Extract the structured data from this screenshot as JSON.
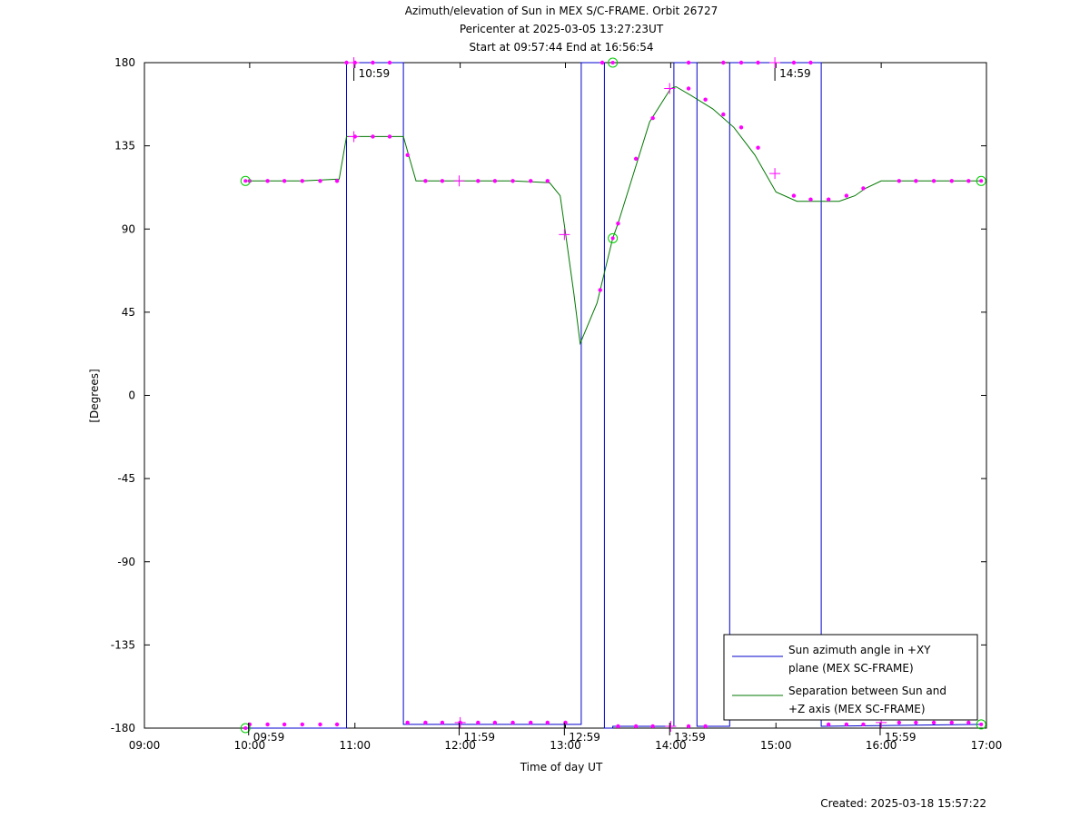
{
  "chart_data": {
    "type": "line",
    "title": [
      "Azimuth/elevation of Sun in MEX S/C-FRAME.  Orbit 26727",
      "Pericenter at 2025-03-05 13:27:23UT",
      "Start at 09:57:44 End at 16:56:54"
    ],
    "xlabel": "Time of day UT",
    "ylabel": "[Degrees]",
    "xlim": [
      9.0,
      17.0
    ],
    "ylim": [
      -180,
      180
    ],
    "x_ticks": [
      9,
      10,
      11,
      12,
      13,
      14,
      15,
      16,
      17
    ],
    "x_tick_labels": [
      "09:00",
      "10:00",
      "11:00",
      "12:00",
      "13:00",
      "14:00",
      "15:00",
      "16:00",
      "17:00"
    ],
    "y_ticks": [
      180,
      135,
      90,
      45,
      0,
      -45,
      -90,
      -135,
      -180
    ],
    "y_tick_labels": [
      "180",
      "135",
      "90",
      "45",
      "0",
      "-45",
      "-90",
      "-135",
      "-180"
    ],
    "grid": false,
    "legend_position": "bottom-right",
    "colors": {
      "azimuth": "#0000cc",
      "separation": "#007700",
      "markers": "#ff00ff",
      "endpoints": "#00cc00"
    },
    "series": [
      {
        "name": "Sun azimuth angle in +XY plane (MEX SC-FRAME)",
        "legend_lines": [
          "Sun azimuth angle in +XY",
          "plane (MEX SC-FRAME)"
        ],
        "color": "#0000cc",
        "x": [
          9.96,
          10.92,
          10.92,
          11.46,
          11.46,
          13.15,
          13.15,
          13.37,
          13.37,
          13.45,
          13.45,
          14.03,
          14.03,
          14.25,
          14.25,
          14.56,
          14.56,
          15.43,
          15.43,
          16.95
        ],
        "y": [
          -180,
          -180,
          180,
          180,
          -178,
          -178,
          180,
          180,
          -180,
          -180,
          -179,
          -179,
          180,
          180,
          -179,
          -179,
          180,
          180,
          -179,
          -178
        ]
      },
      {
        "name": "Separation between Sun and +Z axis (MEX SC-FRAME)",
        "legend_lines": [
          "Separation between Sun and",
          "+Z axis (MEX SC-FRAME)"
        ],
        "color": "#007700",
        "x": [
          9.96,
          10.5,
          10.85,
          10.92,
          11.0,
          11.46,
          11.52,
          11.58,
          12.0,
          12.5,
          12.85,
          12.95,
          13.0,
          13.08,
          13.14,
          13.3,
          13.45,
          13.5,
          13.8,
          14.0,
          14.05,
          14.2,
          14.4,
          14.6,
          14.8,
          15.0,
          15.2,
          15.3,
          15.6,
          15.75,
          15.85,
          16.0,
          16.5,
          16.95
        ],
        "y": [
          116,
          116,
          117,
          140,
          140,
          140,
          128,
          116,
          116,
          116,
          115,
          108,
          88,
          55,
          28,
          50,
          85,
          93,
          148,
          166,
          167,
          162,
          155,
          145,
          130,
          110,
          105,
          105,
          105,
          108,
          112,
          116,
          116,
          116
        ]
      }
    ],
    "marker_points": [
      [
        10.0,
        -178
      ],
      [
        10.17,
        -178
      ],
      [
        10.33,
        -178
      ],
      [
        10.5,
        -178
      ],
      [
        10.67,
        -178
      ],
      [
        10.83,
        -178
      ],
      [
        10.92,
        180
      ],
      [
        11.0,
        180
      ],
      [
        11.17,
        180
      ],
      [
        11.33,
        180
      ],
      [
        11.5,
        -177
      ],
      [
        11.67,
        -177
      ],
      [
        11.83,
        -177
      ],
      [
        12.0,
        -177
      ],
      [
        12.17,
        -177
      ],
      [
        12.33,
        -177
      ],
      [
        12.5,
        -177
      ],
      [
        12.67,
        -177
      ],
      [
        12.83,
        -177
      ],
      [
        13.0,
        -177
      ],
      [
        13.35,
        180
      ],
      [
        13.5,
        -179
      ],
      [
        13.67,
        -179
      ],
      [
        13.83,
        -179
      ],
      [
        14.17,
        -179
      ],
      [
        14.33,
        -179
      ],
      [
        14.17,
        180
      ],
      [
        14.5,
        180
      ],
      [
        14.67,
        180
      ],
      [
        14.83,
        180
      ],
      [
        15.17,
        180
      ],
      [
        15.33,
        180
      ],
      [
        15.5,
        -178
      ],
      [
        15.67,
        -178
      ],
      [
        15.83,
        -178
      ],
      [
        16.17,
        -177
      ],
      [
        16.33,
        -177
      ],
      [
        16.5,
        -177
      ],
      [
        16.67,
        -177
      ],
      [
        16.83,
        -177
      ],
      [
        10.0,
        116
      ],
      [
        10.17,
        116
      ],
      [
        10.33,
        116
      ],
      [
        10.5,
        116
      ],
      [
        10.67,
        116
      ],
      [
        10.83,
        116
      ],
      [
        11.0,
        140
      ],
      [
        11.17,
        140
      ],
      [
        11.33,
        140
      ],
      [
        11.5,
        130
      ],
      [
        11.67,
        116
      ],
      [
        11.83,
        116
      ],
      [
        12.17,
        116
      ],
      [
        12.33,
        116
      ],
      [
        12.5,
        116
      ],
      [
        12.67,
        116
      ],
      [
        12.83,
        116
      ],
      [
        13.33,
        57
      ],
      [
        13.5,
        93
      ],
      [
        13.67,
        128
      ],
      [
        13.83,
        150
      ],
      [
        14.17,
        166
      ],
      [
        14.33,
        160
      ],
      [
        14.5,
        152
      ],
      [
        14.67,
        145
      ],
      [
        14.83,
        134
      ],
      [
        15.17,
        108
      ],
      [
        15.33,
        106
      ],
      [
        15.5,
        106
      ],
      [
        15.67,
        108
      ],
      [
        15.83,
        112
      ],
      [
        16.17,
        116
      ],
      [
        16.33,
        116
      ],
      [
        16.5,
        116
      ],
      [
        16.67,
        116
      ],
      [
        16.83,
        116
      ]
    ],
    "cross_points": [
      [
        10.99,
        180
      ],
      [
        14.99,
        180
      ],
      [
        12.99,
        87
      ],
      [
        13.99,
        166
      ],
      [
        14.99,
        120
      ],
      [
        11.99,
        116
      ],
      [
        10.99,
        140
      ],
      [
        12.0,
        -177
      ],
      [
        14.0,
        -179
      ],
      [
        16.0,
        -177
      ]
    ],
    "endpoint_circles": [
      [
        9.96,
        116
      ],
      [
        9.96,
        -180
      ],
      [
        13.45,
        180
      ],
      [
        13.45,
        85
      ],
      [
        16.95,
        116
      ],
      [
        16.95,
        -178
      ]
    ],
    "annotations": [
      {
        "text": "10:59",
        "x": 10.99,
        "y": 180,
        "side": "top"
      },
      {
        "text": "14:59",
        "x": 14.99,
        "y": 180,
        "side": "top"
      },
      {
        "text": "09:59",
        "x": 9.99,
        "y": -180,
        "side": "bottom"
      },
      {
        "text": "11:59",
        "x": 11.99,
        "y": -180,
        "side": "bottom"
      },
      {
        "text": "12:59",
        "x": 12.99,
        "y": -180,
        "side": "bottom"
      },
      {
        "text": "13:59",
        "x": 13.99,
        "y": -180,
        "side": "bottom"
      },
      {
        "text": "15:59",
        "x": 15.99,
        "y": -180,
        "side": "bottom"
      }
    ]
  },
  "footer": {
    "created": "Created: 2025-03-18 15:57:22"
  }
}
